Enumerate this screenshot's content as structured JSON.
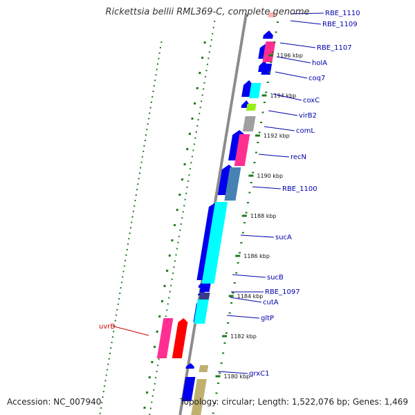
{
  "title": "Rickettsia bellii RML369-C, complete genome",
  "footer": {
    "accession": "Accession: NC_007940",
    "summary": "Topology: circular; Length: 1,522,076 bp; Genes: 1,469"
  },
  "colors": {
    "background": "#ffffff",
    "backbone": "#8c8c8c",
    "cds_forward": "#0000ee",
    "cds_reverse": "#0000ee",
    "tick": "#1a7a1a",
    "label_blue": "#0000aa",
    "label_red": "#cc0000",
    "cog_colors": [
      "#00ffff",
      "#ff2f92",
      "#4682b4",
      "#a0a0a0",
      "#99ee11",
      "#c0b070",
      "#ff0000",
      "#3a3a8a"
    ]
  },
  "ticks": [
    "1196 kbp",
    "1194 kbp",
    "1192 kbp",
    "1190 kbp",
    "1188 kbp",
    "1186 kbp",
    "1184 kbp",
    "1182 kbp",
    "1180 kbp"
  ],
  "genes": [
    {
      "name": "RBE_1110",
      "color": "label_blue"
    },
    {
      "name": "RBE_1109",
      "color": "label_blue"
    },
    {
      "name": "RBE_1107",
      "color": "label_blue"
    },
    {
      "name": "holA",
      "color": "label_blue"
    },
    {
      "name": "coq7",
      "color": "label_blue"
    },
    {
      "name": "coxC",
      "color": "label_blue"
    },
    {
      "name": "virB2",
      "color": "label_blue"
    },
    {
      "name": "comL",
      "color": "label_blue"
    },
    {
      "name": "recN",
      "color": "label_blue"
    },
    {
      "name": "RBE_1100",
      "color": "label_blue"
    },
    {
      "name": "sucA",
      "color": "label_blue"
    },
    {
      "name": "sucB",
      "color": "label_blue"
    },
    {
      "name": "RBE_1097",
      "color": "label_blue"
    },
    {
      "name": "cutA",
      "color": "label_blue"
    },
    {
      "name": "gltP",
      "color": "label_blue"
    },
    {
      "name": "uvrB",
      "color": "label_red"
    },
    {
      "name": "grxC1",
      "color": "label_blue"
    }
  ]
}
